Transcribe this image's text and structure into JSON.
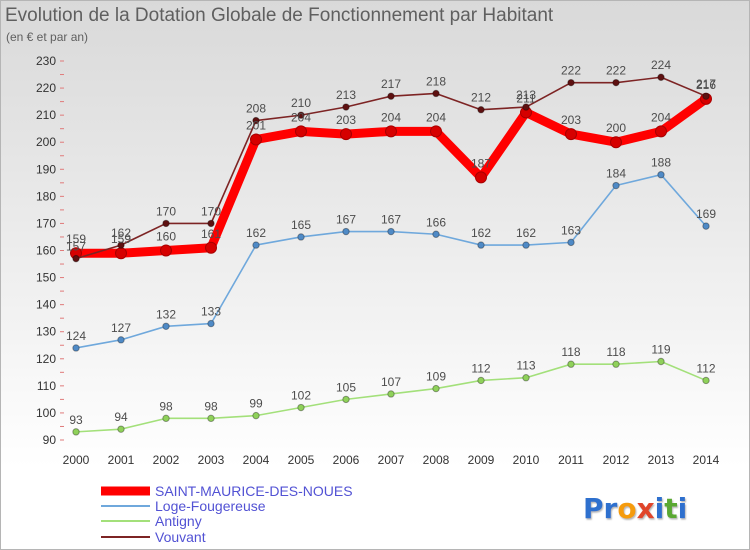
{
  "chart_data": {
    "type": "line",
    "title": "Evolution de la Dotation Globale de Fonctionnement par Habitant",
    "subtitle": "(en € et par an)",
    "x": [
      "2000",
      "2001",
      "2002",
      "2003",
      "2004",
      "2005",
      "2006",
      "2007",
      "2008",
      "2009",
      "2010",
      "2011",
      "2012",
      "2013",
      "2014"
    ],
    "ylim": [
      90,
      230
    ],
    "yticks": [
      90,
      100,
      110,
      120,
      130,
      140,
      150,
      160,
      170,
      180,
      190,
      200,
      210,
      220,
      230
    ],
    "grid": false,
    "legend_position": "bottom-left",
    "series": [
      {
        "name": "SAINT-MAURICE-DES-NOUES",
        "color": "#ff0000",
        "marker_color": "#d60000",
        "values": [
          159,
          159,
          160,
          161,
          201,
          204,
          203,
          204,
          204,
          187,
          211,
          203,
          200,
          204,
          216
        ]
      },
      {
        "name": "Loge-Fougereuse",
        "color": "#6fa8dc",
        "marker_color": "#4f8ac6",
        "values": [
          124,
          127,
          132,
          133,
          162,
          165,
          167,
          167,
          166,
          162,
          162,
          163,
          184,
          188,
          169
        ]
      },
      {
        "name": "Antigny",
        "color": "#a3e07a",
        "marker_color": "#8fd15a",
        "values": [
          93,
          94,
          98,
          98,
          99,
          102,
          105,
          107,
          109,
          112,
          113,
          118,
          118,
          119,
          112
        ]
      },
      {
        "name": "Vouvant",
        "color": "#7d2424",
        "marker_color": "#5e1010",
        "values": [
          157,
          162,
          170,
          170,
          208,
          210,
          213,
          217,
          218,
          212,
          213,
          222,
          222,
          224,
          217
        ]
      }
    ]
  },
  "logo": {
    "text": "Proxiti",
    "colors": [
      "#2f6fce",
      "#2f6fce",
      "#f59b0a",
      "#e0452b",
      "#2f6fce",
      "#5aa832",
      "#2f6fce"
    ]
  }
}
